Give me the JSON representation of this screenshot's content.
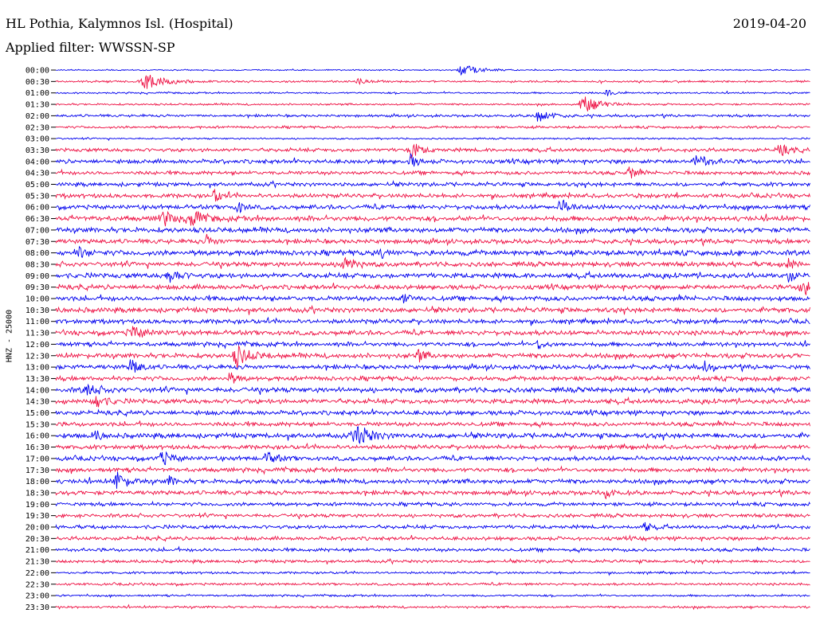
{
  "header": {
    "station": "HL Pothia, Kalymnos Isl. (Hospital)",
    "date": "2019-04-20",
    "filter": "Applied filter: WWSSN-SP",
    "channel": "HNZ - 25000"
  },
  "chart_data": {
    "type": "line",
    "title": "HL Pothia, Kalymnos Isl. (Hospital)",
    "ylabel": "HNZ - 25000",
    "row_labels": [
      "00:00",
      "00:30",
      "01:00",
      "01:30",
      "02:00",
      "02:30",
      "03:00",
      "03:30",
      "04:00",
      "04:30",
      "05:00",
      "05:30",
      "06:00",
      "06:30",
      "07:00",
      "07:30",
      "08:00",
      "08:30",
      "09:00",
      "09:30",
      "10:00",
      "10:30",
      "11:00",
      "11:30",
      "12:00",
      "12:30",
      "13:00",
      "13:30",
      "14:00",
      "14:30",
      "15:00",
      "15:30",
      "16:00",
      "16:30",
      "17:00",
      "17:30",
      "18:00",
      "18:30",
      "19:00",
      "19:30",
      "20:00",
      "20:30",
      "21:00",
      "21:30",
      "22:00",
      "22:30",
      "23:00",
      "23:30"
    ],
    "colors": [
      "#0000ee",
      "#ee1144"
    ],
    "noise_levels": [
      0.9,
      1.4,
      1.2,
      1.4,
      1.8,
      1.8,
      1.2,
      2.6,
      3.0,
      2.6,
      2.8,
      3.0,
      3.2,
      3.6,
      3.6,
      3.2,
      3.8,
      3.4,
      3.6,
      3.4,
      3.4,
      3.6,
      3.2,
      3.4,
      3.0,
      3.4,
      3.2,
      3.2,
      3.6,
      3.4,
      3.2,
      3.0,
      3.6,
      3.0,
      3.2,
      3.0,
      3.2,
      3.0,
      2.6,
      2.6,
      2.6,
      2.6,
      2.4,
      2.2,
      1.6,
      1.8,
      1.4,
      1.6
    ],
    "events": [
      {
        "row": 0,
        "pos": 0.54,
        "amp": 7,
        "width": 0.025
      },
      {
        "row": 1,
        "pos": 0.12,
        "amp": 10,
        "width": 0.03
      },
      {
        "row": 1,
        "pos": 0.4,
        "amp": 4,
        "width": 0.01
      },
      {
        "row": 2,
        "pos": 0.73,
        "amp": 5,
        "width": 0.01
      },
      {
        "row": 3,
        "pos": 0.7,
        "amp": 11,
        "width": 0.025
      },
      {
        "row": 4,
        "pos": 0.64,
        "amp": 8,
        "width": 0.02
      },
      {
        "row": 7,
        "pos": 0.47,
        "amp": 10,
        "width": 0.015
      },
      {
        "row": 7,
        "pos": 0.96,
        "amp": 7,
        "width": 0.015
      },
      {
        "row": 8,
        "pos": 0.47,
        "amp": 9,
        "width": 0.01
      },
      {
        "row": 8,
        "pos": 0.85,
        "amp": 7,
        "width": 0.02
      },
      {
        "row": 9,
        "pos": 0.76,
        "amp": 9,
        "width": 0.01
      },
      {
        "row": 11,
        "pos": 0.21,
        "amp": 9,
        "width": 0.01
      },
      {
        "row": 12,
        "pos": 0.67,
        "amp": 9,
        "width": 0.015
      },
      {
        "row": 12,
        "pos": 0.24,
        "amp": 8,
        "width": 0.01
      },
      {
        "row": 13,
        "pos": 0.14,
        "amp": 10,
        "width": 0.015
      },
      {
        "row": 13,
        "pos": 0.18,
        "amp": 12,
        "width": 0.015
      },
      {
        "row": 15,
        "pos": 0.2,
        "amp": 8,
        "width": 0.01
      },
      {
        "row": 16,
        "pos": 0.03,
        "amp": 6,
        "width": 0.015
      },
      {
        "row": 16,
        "pos": 0.43,
        "amp": 7,
        "width": 0.01
      },
      {
        "row": 17,
        "pos": 0.38,
        "amp": 13,
        "width": 0.015
      },
      {
        "row": 17,
        "pos": 0.97,
        "amp": 8,
        "width": 0.01
      },
      {
        "row": 18,
        "pos": 0.15,
        "amp": 9,
        "width": 0.015
      },
      {
        "row": 18,
        "pos": 0.97,
        "amp": 9,
        "width": 0.01
      },
      {
        "row": 19,
        "pos": 0.99,
        "amp": 14,
        "width": 0.015
      },
      {
        "row": 20,
        "pos": 0.46,
        "amp": 6,
        "width": 0.01
      },
      {
        "row": 23,
        "pos": 0.1,
        "amp": 8,
        "width": 0.02
      },
      {
        "row": 24,
        "pos": 0.64,
        "amp": 6,
        "width": 0.01
      },
      {
        "row": 25,
        "pos": 0.24,
        "amp": 12,
        "width": 0.02
      },
      {
        "row": 25,
        "pos": 0.48,
        "amp": 8,
        "width": 0.01
      },
      {
        "row": 26,
        "pos": 0.1,
        "amp": 11,
        "width": 0.012
      },
      {
        "row": 26,
        "pos": 0.86,
        "amp": 6,
        "width": 0.01
      },
      {
        "row": 27,
        "pos": 0.23,
        "amp": 8,
        "width": 0.01
      },
      {
        "row": 28,
        "pos": 0.04,
        "amp": 7,
        "width": 0.02
      },
      {
        "row": 29,
        "pos": 0.05,
        "amp": 11,
        "width": 0.015
      },
      {
        "row": 32,
        "pos": 0.4,
        "amp": 14,
        "width": 0.02
      },
      {
        "row": 32,
        "pos": 0.05,
        "amp": 7,
        "width": 0.01
      },
      {
        "row": 34,
        "pos": 0.14,
        "amp": 9,
        "width": 0.015
      },
      {
        "row": 34,
        "pos": 0.28,
        "amp": 7,
        "width": 0.015
      },
      {
        "row": 36,
        "pos": 0.08,
        "amp": 12,
        "width": 0.015
      },
      {
        "row": 36,
        "pos": 0.15,
        "amp": 6,
        "width": 0.01
      },
      {
        "row": 37,
        "pos": 0.73,
        "amp": 7,
        "width": 0.01
      },
      {
        "row": 40,
        "pos": 0.78,
        "amp": 6,
        "width": 0.01
      }
    ]
  }
}
